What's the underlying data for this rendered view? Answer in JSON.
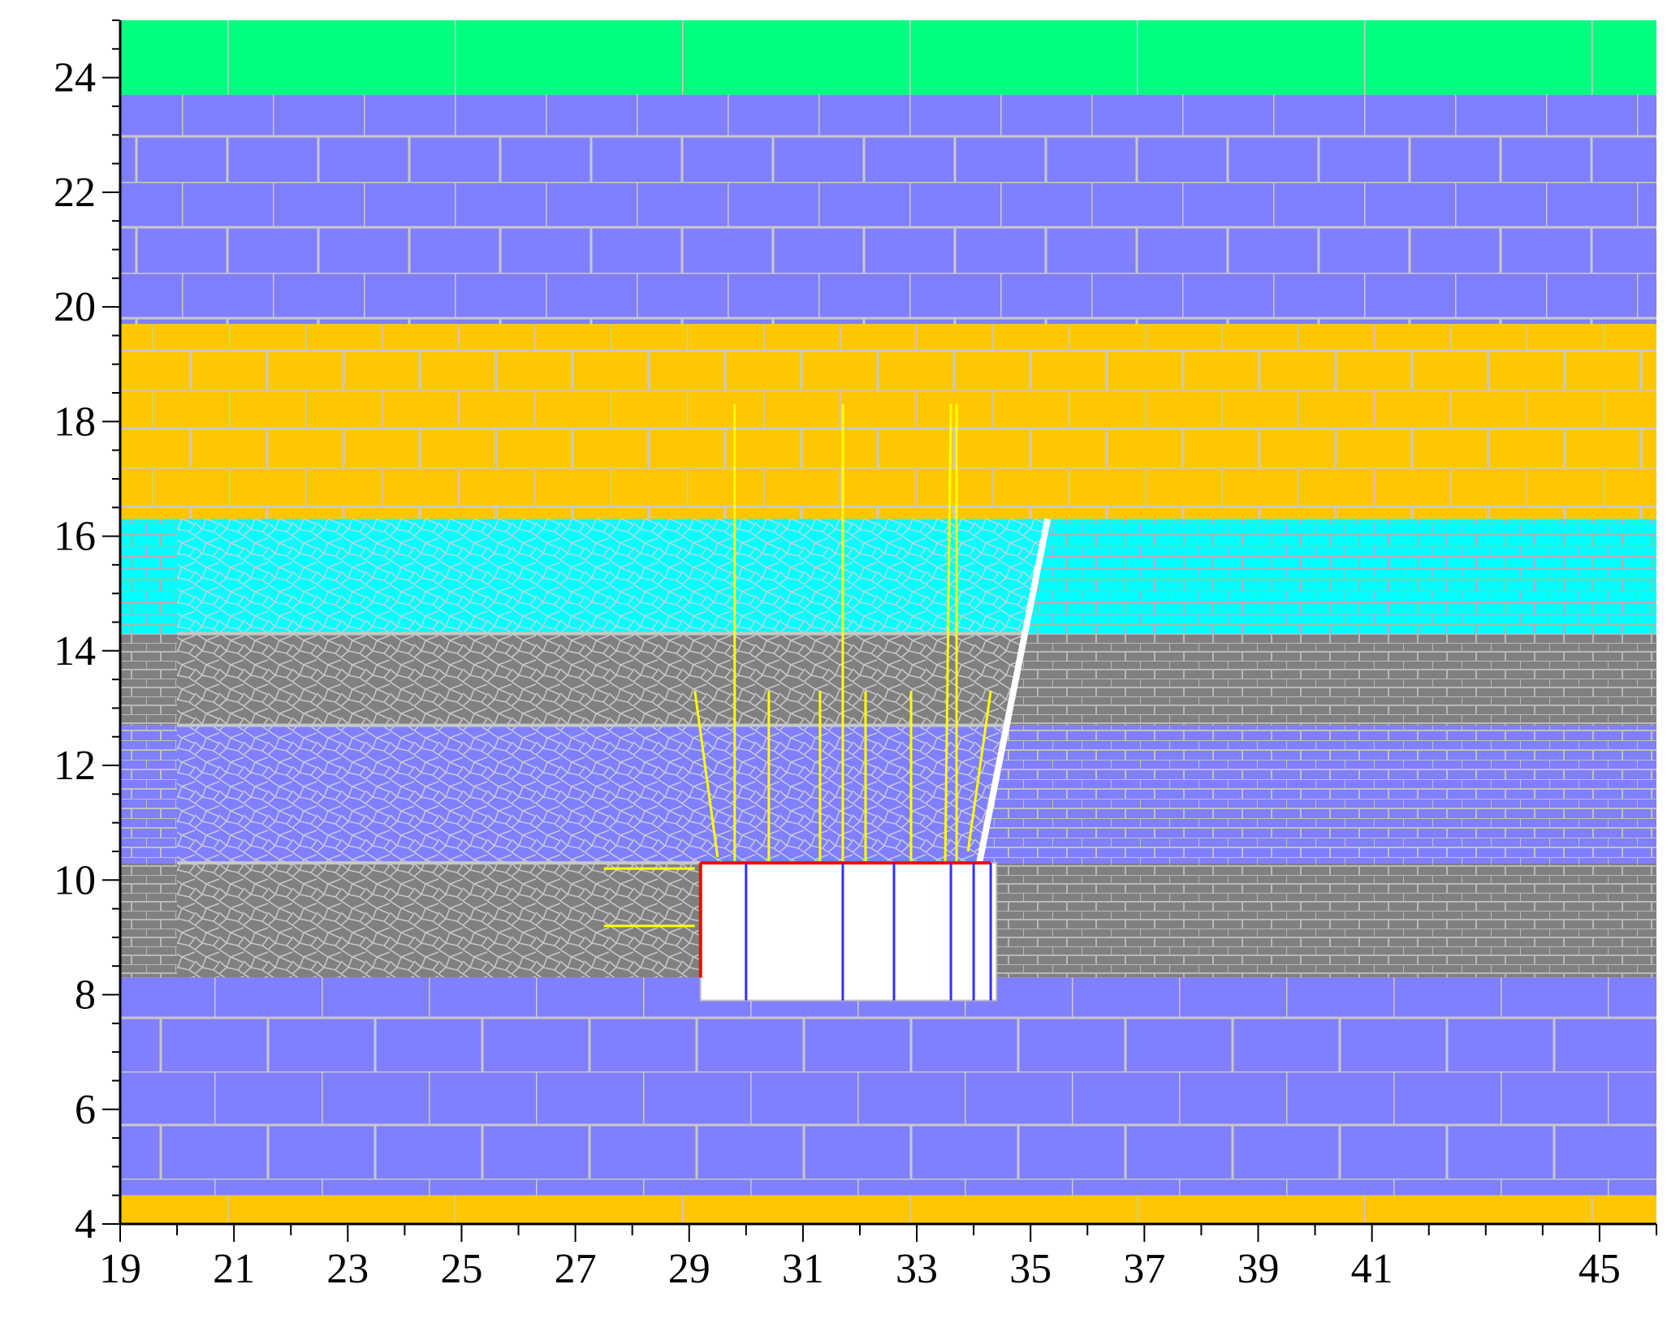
{
  "axes": {
    "x_ticks": [
      "19",
      "21",
      "23",
      "25",
      "27",
      "29",
      "31",
      "33",
      "35",
      "37",
      "39",
      "41",
      "45"
    ],
    "y_ticks": [
      "4",
      "6",
      "8",
      "10",
      "12",
      "14",
      "16",
      "18",
      "20",
      "22",
      "24"
    ]
  },
  "chart_data": {
    "type": "cross-section",
    "x_range": [
      19,
      46
    ],
    "y_range": [
      4,
      25
    ],
    "x_tick_values": [
      19,
      21,
      23,
      25,
      27,
      29,
      31,
      33,
      35,
      37,
      39,
      41,
      45
    ],
    "y_tick_values": [
      4,
      6,
      8,
      10,
      12,
      14,
      16,
      18,
      20,
      22,
      24
    ],
    "layers": [
      {
        "y_bottom": 23.7,
        "y_top": 25.0,
        "color": "#00ff7f",
        "pattern": "block"
      },
      {
        "y_bottom": 19.7,
        "y_top": 23.7,
        "color": "#7f7fff",
        "pattern": "block"
      },
      {
        "y_bottom": 16.3,
        "y_top": 19.7,
        "color": "#ffc700",
        "pattern": "block"
      },
      {
        "y_bottom": 14.3,
        "y_top": 16.3,
        "color": "#00ffff",
        "pattern": "block-fine"
      },
      {
        "y_bottom": 12.7,
        "y_top": 14.3,
        "color": "#808080",
        "pattern": "block-fine"
      },
      {
        "y_bottom": 10.3,
        "y_top": 12.7,
        "color": "#7f7fff",
        "pattern": "block-fine"
      },
      {
        "y_bottom": 8.3,
        "y_top": 10.3,
        "color": "#808080",
        "pattern": "block-fine"
      },
      {
        "y_bottom": 4.5,
        "y_top": 8.3,
        "color": "#7f7fff",
        "pattern": "block"
      },
      {
        "y_bottom": 4.0,
        "y_top": 4.5,
        "color": "#ffc700",
        "pattern": "block"
      }
    ],
    "meshed_zone": {
      "x_left": 20.0,
      "y_bottom": 8.3,
      "y_top": 16.3,
      "boundary": [
        [
          34.4,
          8.3
        ],
        [
          34.1,
          10.3
        ],
        [
          35.3,
          16.3
        ]
      ]
    },
    "fault_line": [
      [
        34.1,
        10.3
      ],
      [
        35.3,
        16.3
      ]
    ],
    "excavation": {
      "x_left": 29.2,
      "x_right": 34.4,
      "y_bottom": 7.9,
      "y_top": 10.3,
      "edge_color": "#ff0000",
      "supports_x": [
        30.0,
        31.7,
        32.6,
        33.6,
        34.0,
        34.3
      ]
    },
    "fractures": [
      {
        "points": [
          [
            29.8,
            10.3
          ],
          [
            29.8,
            18.3
          ]
        ]
      },
      {
        "points": [
          [
            31.7,
            10.3
          ],
          [
            31.7,
            18.3
          ]
        ]
      },
      {
        "points": [
          [
            33.5,
            10.3
          ],
          [
            33.6,
            18.3
          ]
        ]
      },
      {
        "points": [
          [
            33.7,
            10.3
          ],
          [
            33.7,
            18.3
          ]
        ]
      },
      {
        "points": [
          [
            29.5,
            10.4
          ],
          [
            29.1,
            13.3
          ]
        ]
      },
      {
        "points": [
          [
            30.4,
            10.3
          ],
          [
            30.4,
            13.3
          ]
        ]
      },
      {
        "points": [
          [
            31.3,
            10.3
          ],
          [
            31.3,
            13.3
          ]
        ]
      },
      {
        "points": [
          [
            32.1,
            10.3
          ],
          [
            32.1,
            13.3
          ]
        ]
      },
      {
        "points": [
          [
            32.9,
            10.3
          ],
          [
            32.9,
            13.3
          ]
        ]
      },
      {
        "points": [
          [
            33.9,
            10.5
          ],
          [
            34.3,
            13.3
          ]
        ]
      },
      {
        "points": [
          [
            29.1,
            10.2
          ],
          [
            27.5,
            10.2
          ]
        ]
      },
      {
        "points": [
          [
            29.1,
            9.2
          ],
          [
            27.5,
            9.2
          ]
        ]
      }
    ]
  }
}
